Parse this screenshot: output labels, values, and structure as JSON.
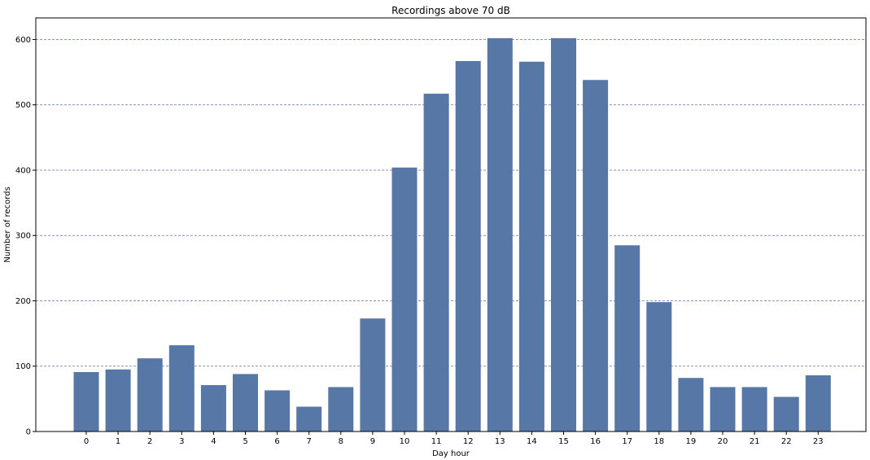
{
  "chart_data": {
    "type": "bar",
    "title": "Recordings above 70 dB",
    "xlabel": "Day hour",
    "ylabel": "Number of records",
    "categories": [
      "0",
      "1",
      "2",
      "3",
      "4",
      "5",
      "6",
      "7",
      "8",
      "9",
      "10",
      "11",
      "12",
      "13",
      "14",
      "15",
      "16",
      "17",
      "18",
      "19",
      "20",
      "21",
      "22",
      "23"
    ],
    "values": [
      91,
      95,
      112,
      132,
      71,
      88,
      63,
      38,
      68,
      173,
      404,
      517,
      567,
      602,
      566,
      602,
      538,
      285,
      198,
      82,
      68,
      68,
      53,
      86
    ],
    "yticks": [
      "0",
      "100",
      "200",
      "300",
      "400",
      "500",
      "600"
    ],
    "ylim": [
      0,
      633
    ],
    "grid": "horizontal dashed",
    "colors": {
      "bar": "#5778a7",
      "grid": "#5778a7",
      "axis": "#000000"
    }
  }
}
